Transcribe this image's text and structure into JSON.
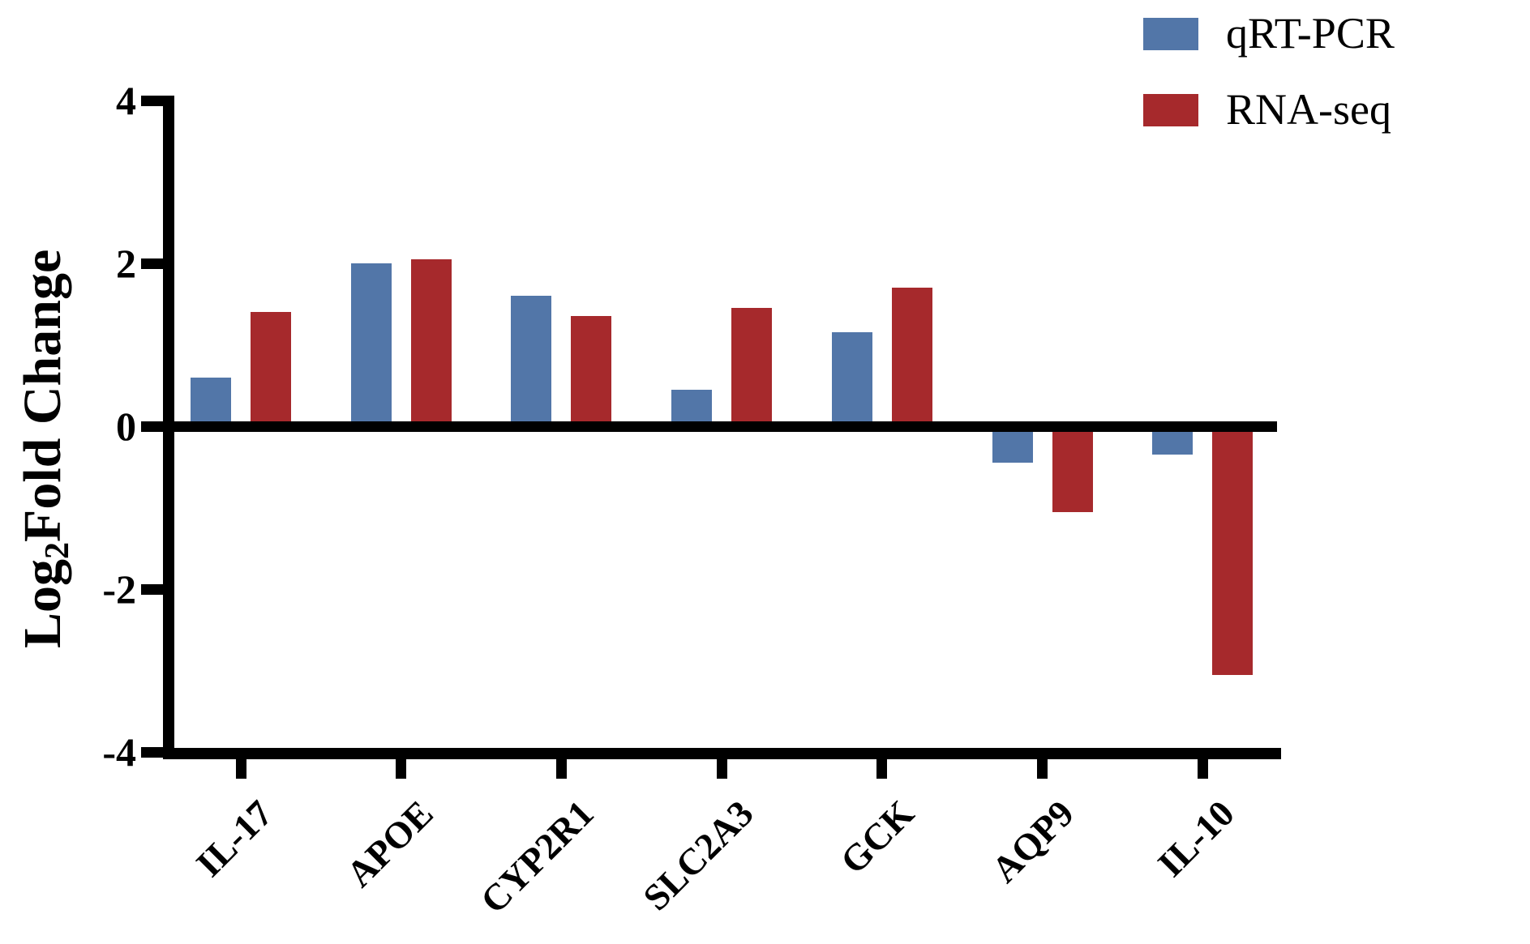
{
  "figure": {
    "background": "#ffffff",
    "ink_color": "#000000"
  },
  "legend": {
    "position": "top-right",
    "items": [
      {
        "label": "qRT-PCR",
        "color": "#5276A8"
      },
      {
        "label": "RNA-seq",
        "color": "#A6292C"
      }
    ]
  },
  "y_axis": {
    "title_prefix": "Log",
    "title_sub": "2",
    "title_suffix": "Fold Change"
  },
  "chart_data": {
    "type": "bar",
    "title": "",
    "categories": [
      "IL-17",
      "APOE",
      "CYP2R1",
      "SLC2A3",
      "GCK",
      "AQP9",
      "IL-10"
    ],
    "series": [
      {
        "name": "qRT-PCR",
        "color": "#5276A8",
        "values": [
          0.6,
          2.0,
          1.6,
          0.45,
          1.15,
          -0.45,
          -0.35
        ]
      },
      {
        "name": "RNA-seq",
        "color": "#A6292C",
        "values": [
          1.4,
          2.05,
          1.35,
          1.45,
          1.7,
          -1.05,
          -3.05
        ]
      }
    ],
    "xlabel": "",
    "ylabel": "Log2Fold Change",
    "ylim": [
      -4,
      4
    ],
    "yticks": [
      4,
      2,
      0,
      -2,
      -4
    ],
    "grid": false,
    "legend_position": "top-right",
    "bar_orientation": "vertical",
    "baseline": 0
  }
}
